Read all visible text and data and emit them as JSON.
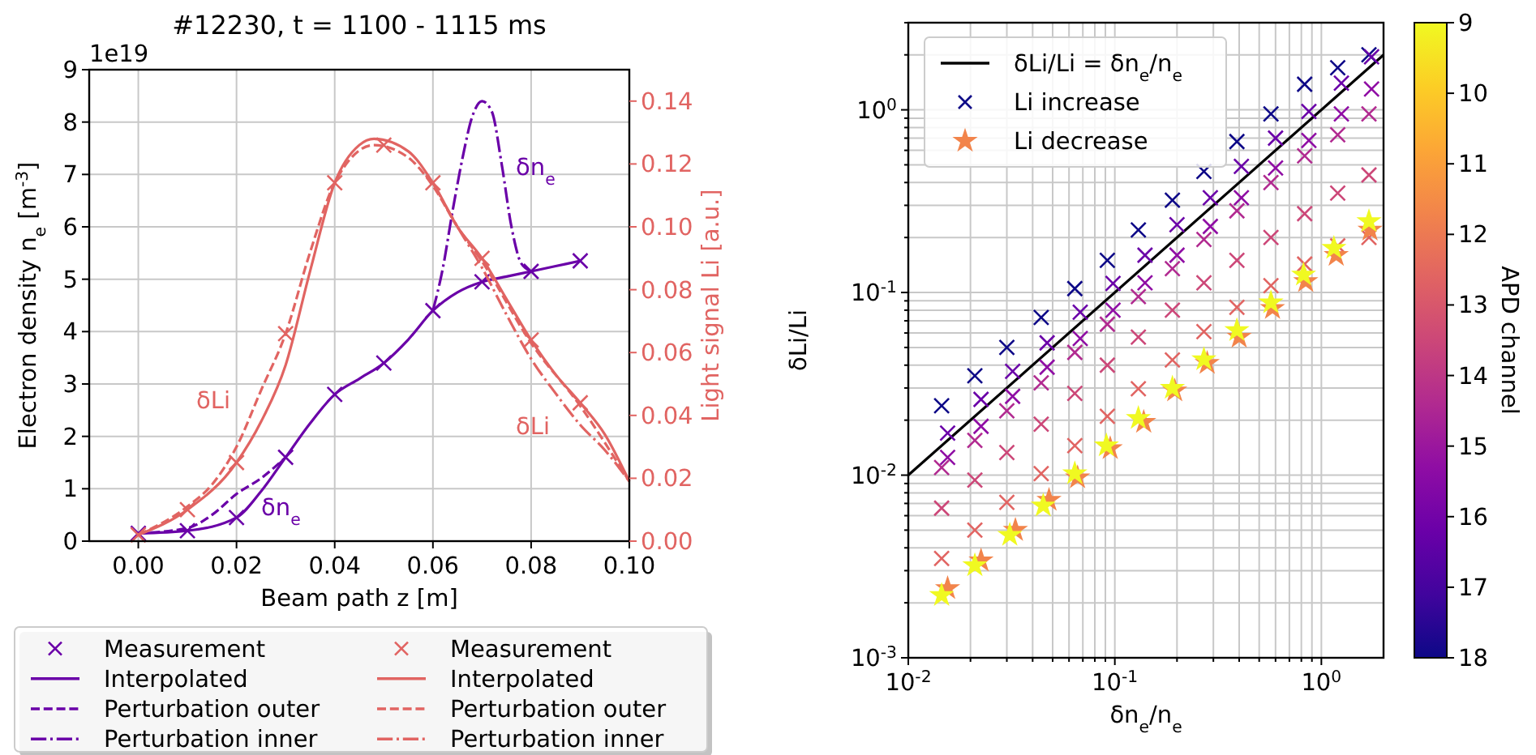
{
  "chart_data": [
    {
      "type": "line",
      "title": "#12230, t = 1100 - 1115 ms",
      "xlabel": "Beam path z [m]",
      "ylabel": "Electron density n$_{e}$ [m$^{-3}$]",
      "y2label": "Light signal Li [a.u.]",
      "xlim": [
        -0.01,
        0.1
      ],
      "xticks": [
        {
          "value": 0,
          "label": "0.00"
        },
        {
          "value": 0.02,
          "label": "0.02"
        },
        {
          "value": 0.04,
          "label": "0.04"
        },
        {
          "value": 0.06,
          "label": "0.06"
        },
        {
          "value": 0.08,
          "label": "0.08"
        },
        {
          "value": 0.1,
          "label": "0.10"
        }
      ],
      "ylim": [
        0,
        9
      ],
      "yticks": [
        0,
        1,
        2,
        3,
        4,
        5,
        6,
        7,
        8,
        9
      ],
      "y2lim": [
        0,
        0.15
      ],
      "y2ticks": [
        {
          "value": 0,
          "label": "0.00"
        },
        {
          "value": 0.02,
          "label": "0.02"
        },
        {
          "value": 0.04,
          "label": "0.04"
        },
        {
          "value": 0.06,
          "label": "0.06"
        },
        {
          "value": 0.08,
          "label": "0.08"
        },
        {
          "value": 0.1,
          "label": "0.10"
        },
        {
          "value": 0.12,
          "label": "0.12"
        },
        {
          "value": 0.14,
          "label": "0.14"
        }
      ],
      "grid": true,
      "legend": "bottom",
      "annotations": [
        "1e19",
        "δLi",
        "δLi",
        "δn$_{e}$",
        "δn$_{e}$"
      ],
      "series": [
        {
          "name": "Measurement",
          "type": "scatter",
          "marker": "cross",
          "color": "#6a00a8",
          "x": [
            0,
            0.01,
            0.02,
            0.03,
            0.04,
            0.05,
            0.06,
            0.07,
            0.08,
            0.09
          ],
          "values": [
            0.15,
            0.2,
            0.45,
            1.6,
            2.8,
            3.4,
            4.4,
            4.95,
            5.15,
            5.35
          ]
        },
        {
          "name": "Interpolated",
          "line_style": "solid",
          "color": "#6a00a8",
          "x": [
            0,
            0.01,
            0.02,
            0.025,
            0.03,
            0.035,
            0.04,
            0.045,
            0.05,
            0.055,
            0.06,
            0.065,
            0.07,
            0.075,
            0.08,
            0.085,
            0.09
          ],
          "values": [
            0.15,
            0.2,
            0.45,
            0.95,
            1.6,
            2.25,
            2.8,
            3.1,
            3.4,
            3.85,
            4.4,
            4.75,
            4.95,
            5.05,
            5.15,
            5.25,
            5.35
          ]
        },
        {
          "name": "Perturbation outer",
          "line_style": "dashed",
          "color": "#6a00a8",
          "x": [
            0,
            0.01,
            0.015,
            0.02,
            0.025,
            0.03
          ],
          "values": [
            0.15,
            0.25,
            0.5,
            0.9,
            1.2,
            1.6
          ]
        },
        {
          "name": "Perturbation inner",
          "line_style": "dashdot",
          "color": "#6a00a8",
          "x": [
            0.06,
            0.062,
            0.064,
            0.066,
            0.068,
            0.07,
            0.072,
            0.074,
            0.076,
            0.078,
            0.08
          ],
          "values": [
            4.4,
            5.2,
            6.3,
            7.3,
            8.1,
            8.4,
            8.2,
            7.2,
            6.0,
            5.3,
            5.15
          ]
        },
        {
          "name": "Measurement",
          "type": "scatter",
          "marker": "cross",
          "axis": "y2",
          "color": "#e16462",
          "x": [
            0,
            0.01,
            0.02,
            0.03,
            0.04,
            0.05,
            0.06,
            0.07,
            0.08,
            0.09
          ],
          "values": [
            0.002,
            0.01,
            0.025,
            0.066,
            0.114,
            0.126,
            0.114,
            0.09,
            0.064,
            0.044
          ]
        },
        {
          "name": "Interpolated",
          "line_style": "solid",
          "axis": "y2",
          "color": "#e16462",
          "x": [
            0,
            0.01,
            0.02,
            0.025,
            0.03,
            0.035,
            0.04,
            0.045,
            0.048,
            0.055,
            0.06,
            0.065,
            0.07,
            0.075,
            0.08,
            0.085,
            0.09,
            0.095,
            0.1
          ],
          "values": [
            0.002,
            0.01,
            0.025,
            0.038,
            0.056,
            0.086,
            0.114,
            0.126,
            0.128,
            0.124,
            0.114,
            0.1,
            0.09,
            0.077,
            0.064,
            0.053,
            0.044,
            0.034,
            0.019
          ]
        },
        {
          "name": "Perturbation outer",
          "line_style": "dashed",
          "axis": "y2",
          "color": "#e16462",
          "x": [
            0,
            0.01,
            0.015,
            0.02,
            0.025,
            0.03,
            0.035,
            0.04,
            0.048,
            0.055,
            0.06,
            0.065,
            0.07,
            0.08,
            0.09,
            0.1
          ],
          "values": [
            0.002,
            0.011,
            0.018,
            0.03,
            0.048,
            0.066,
            0.092,
            0.114,
            0.126,
            0.122,
            0.113,
            0.1,
            0.089,
            0.063,
            0.043,
            0.019
          ]
        },
        {
          "name": "Perturbation inner",
          "line_style": "dashdot",
          "axis": "y2",
          "color": "#e16462",
          "x": [
            0.06,
            0.065,
            0.07,
            0.075,
            0.08,
            0.085,
            0.09,
            0.095,
            0.1
          ],
          "values": [
            0.114,
            0.1,
            0.087,
            0.072,
            0.058,
            0.047,
            0.037,
            0.029,
            0.019
          ]
        }
      ]
    },
    {
      "type": "scatter",
      "xlabel": "δn$_{e}$/n$_{e}$",
      "ylabel": "δLi/Li",
      "clabel": "APD channel",
      "log": "xy",
      "xlim": [
        0.01,
        2
      ],
      "xticks": [
        {
          "value": 0.01,
          "label": "10$^{-2}$"
        },
        {
          "value": 0.02,
          "label": null
        },
        {
          "value": 0.03,
          "label": null
        },
        {
          "value": 0.04,
          "label": null
        },
        {
          "value": 0.05,
          "label": null
        },
        {
          "value": 0.06,
          "label": null
        },
        {
          "value": 0.07,
          "label": null
        },
        {
          "value": 0.08,
          "label": null
        },
        {
          "value": 0.09,
          "label": null
        },
        {
          "value": 0.1,
          "label": "10$^{-1}$"
        },
        {
          "value": 0.2,
          "label": null
        },
        {
          "value": 0.3,
          "label": null
        },
        {
          "value": 0.4,
          "label": null
        },
        {
          "value": 0.5,
          "label": null
        },
        {
          "value": 0.6,
          "label": null
        },
        {
          "value": 0.7,
          "label": null
        },
        {
          "value": 0.8,
          "label": null
        },
        {
          "value": 0.9,
          "label": null
        },
        {
          "value": 1,
          "label": "10$^{0}$"
        }
      ],
      "ylim": [
        0.001,
        3
      ],
      "yticks": [
        {
          "value": 0.001,
          "label": "10$^{-3}$"
        },
        {
          "value": 0.002,
          "label": null
        },
        {
          "value": 0.003,
          "label": null
        },
        {
          "value": 0.004,
          "label": null
        },
        {
          "value": 0.005,
          "label": null
        },
        {
          "value": 0.006,
          "label": null
        },
        {
          "value": 0.007,
          "label": null
        },
        {
          "value": 0.008,
          "label": null
        },
        {
          "value": 0.009,
          "label": null
        },
        {
          "value": 0.01,
          "label": "10$^{-2}$"
        },
        {
          "value": 0.02,
          "label": null
        },
        {
          "value": 0.03,
          "label": null
        },
        {
          "value": 0.04,
          "label": null
        },
        {
          "value": 0.05,
          "label": null
        },
        {
          "value": 0.06,
          "label": null
        },
        {
          "value": 0.07,
          "label": null
        },
        {
          "value": 0.08,
          "label": null
        },
        {
          "value": 0.09,
          "label": null
        },
        {
          "value": 0.1,
          "label": "10$^{-1}$"
        },
        {
          "value": 0.2,
          "label": null
        },
        {
          "value": 0.3,
          "label": null
        },
        {
          "value": 0.4,
          "label": null
        },
        {
          "value": 0.5,
          "label": null
        },
        {
          "value": 0.6,
          "label": null
        },
        {
          "value": 0.7,
          "label": null
        },
        {
          "value": 0.8,
          "label": null
        },
        {
          "value": 0.9,
          "label": null
        },
        {
          "value": 1,
          "label": "10$^{0}$"
        },
        {
          "value": 2,
          "label": null
        },
        {
          "value": 3,
          "label": null
        }
      ],
      "grid": true,
      "legend": "top left",
      "clim": [
        18,
        9
      ],
      "cticks": [
        9,
        10,
        11,
        12,
        13,
        14,
        15,
        16,
        17,
        18
      ],
      "series": [
        {
          "name": "δLi/Li = δn$_{e}$/n$_{e}$",
          "type": "line",
          "line_style": "solid",
          "color": "#000000",
          "x": [
            0.01,
            2
          ],
          "values": [
            0.01,
            2
          ]
        },
        {
          "name": "Li increase",
          "marker": "cross",
          "x": [
            0.0145,
            0.021,
            0.03,
            0.044,
            0.064,
            0.092,
            0.13,
            0.19,
            0.27,
            0.39,
            0.57,
            0.83,
            1.2,
            1.7,
            0.0155,
            0.0225,
            0.032,
            0.047,
            0.068,
            0.098,
            0.14,
            0.2,
            0.29,
            0.41,
            0.6,
            0.87,
            1.25,
            1.75,
            0.0155,
            0.0225,
            0.032,
            0.047,
            0.068,
            0.098,
            0.14,
            0.2,
            0.29,
            0.41,
            0.6,
            0.87,
            1.25,
            1.75,
            0.0145,
            0.021,
            0.03,
            0.044,
            0.064,
            0.092,
            0.13,
            0.19,
            0.27,
            0.39,
            0.57,
            0.83,
            1.2,
            1.7,
            0.0145,
            0.021,
            0.03,
            0.044,
            0.064,
            0.092,
            0.13,
            0.19,
            0.27,
            0.39,
            0.57,
            0.83,
            1.2,
            1.7,
            0.0145,
            0.021,
            0.03,
            0.044,
            0.064,
            0.092,
            0.13,
            0.19,
            0.27,
            0.39,
            0.57,
            0.83,
            1.2,
            1.7
          ],
          "values": [
            0.024,
            0.035,
            0.05,
            0.073,
            0.105,
            0.15,
            0.22,
            0.32,
            0.46,
            0.67,
            0.95,
            1.38,
            1.7,
            2.0,
            0.017,
            0.026,
            0.037,
            0.053,
            0.078,
            0.112,
            0.16,
            0.235,
            0.33,
            0.49,
            0.7,
            0.98,
            1.4,
            1.95,
            0.0125,
            0.0185,
            0.027,
            0.039,
            0.056,
            0.08,
            0.113,
            0.16,
            0.23,
            0.33,
            0.48,
            0.68,
            0.95,
            1.3,
            0.011,
            0.0155,
            0.0225,
            0.032,
            0.047,
            0.067,
            0.095,
            0.135,
            0.195,
            0.28,
            0.4,
            0.56,
            0.73,
            0.95,
            0.0066,
            0.0094,
            0.0133,
            0.019,
            0.028,
            0.04,
            0.057,
            0.08,
            0.113,
            0.15,
            0.2,
            0.27,
            0.35,
            0.44,
            0.0035,
            0.005,
            0.0071,
            0.0102,
            0.0145,
            0.021,
            0.0297,
            0.0427,
            0.061,
            0.083,
            0.109,
            0.143,
            0.18,
            0.2
          ],
          "colors": [
            "#0d0887",
            "#0d0887",
            "#0d0887",
            "#0d0887",
            "#0d0887",
            "#0d0887",
            "#0d0887",
            "#0d0887",
            "#0d0887",
            "#0d0887",
            "#0d0887",
            "#0d0887",
            "#0d0887",
            "#0d0887",
            "#6a00a8",
            "#6a00a8",
            "#6a00a8",
            "#6a00a8",
            "#6a00a8",
            "#6a00a8",
            "#6a00a8",
            "#6a00a8",
            "#6a00a8",
            "#6a00a8",
            "#6a00a8",
            "#6a00a8",
            "#6a00a8",
            "#6a00a8",
            "#8f0da4",
            "#8f0da4",
            "#8f0da4",
            "#8f0da4",
            "#8f0da4",
            "#8f0da4",
            "#8f0da4",
            "#8f0da4",
            "#8f0da4",
            "#8f0da4",
            "#8f0da4",
            "#8f0da4",
            "#8f0da4",
            "#8f0da4",
            "#b12a90",
            "#b12a90",
            "#b12a90",
            "#b12a90",
            "#b12a90",
            "#b12a90",
            "#b12a90",
            "#b12a90",
            "#b12a90",
            "#b12a90",
            "#b12a90",
            "#b12a90",
            "#b12a90",
            "#b12a90",
            "#cc4778",
            "#cc4778",
            "#cc4778",
            "#cc4778",
            "#cc4778",
            "#cc4778",
            "#cc4778",
            "#cc4778",
            "#cc4778",
            "#cc4778",
            "#cc4778",
            "#cc4778",
            "#cc4778",
            "#cc4778",
            "#e16462",
            "#e16462",
            "#e16462",
            "#e16462",
            "#e16462",
            "#e16462",
            "#e16462",
            "#e16462",
            "#e16462",
            "#e16462",
            "#e16462",
            "#e16462",
            "#e16462",
            "#e16462"
          ]
        },
        {
          "name": "Li decrease",
          "marker": "star",
          "x": [
            0.0155,
            0.0225,
            0.033,
            0.048,
            0.066,
            0.095,
            0.138,
            0.195,
            0.28,
            0.4,
            0.58,
            0.84,
            1.18,
            1.72,
            0.0145,
            0.021,
            0.031,
            0.045,
            0.064,
            0.091,
            0.13,
            0.19,
            0.27,
            0.39,
            0.57,
            0.82,
            1.15,
            1.7
          ],
          "values": [
            0.0024,
            0.0034,
            0.005,
            0.0073,
            0.0097,
            0.014,
            0.0195,
            0.029,
            0.041,
            0.057,
            0.082,
            0.115,
            0.16,
            0.22,
            0.0022,
            0.0032,
            0.0047,
            0.0068,
            0.0102,
            0.0145,
            0.0205,
            0.03,
            0.043,
            0.062,
            0.088,
            0.125,
            0.175,
            0.245
          ],
          "colors": [
            "#f2844b",
            "#f2844b",
            "#f2844b",
            "#f2844b",
            "#f2844b",
            "#f2844b",
            "#f2844b",
            "#f2844b",
            "#f2844b",
            "#f2844b",
            "#f2844b",
            "#f2844b",
            "#f2844b",
            "#f2844b",
            "#f0f921",
            "#f0f921",
            "#f0f921",
            "#f0f921",
            "#f0f921",
            "#f0f921",
            "#f0f921",
            "#f0f921",
            "#f0f921",
            "#f0f921",
            "#f0f921",
            "#f0f921",
            "#f0f921",
            "#f0f921"
          ]
        }
      ]
    }
  ]
}
